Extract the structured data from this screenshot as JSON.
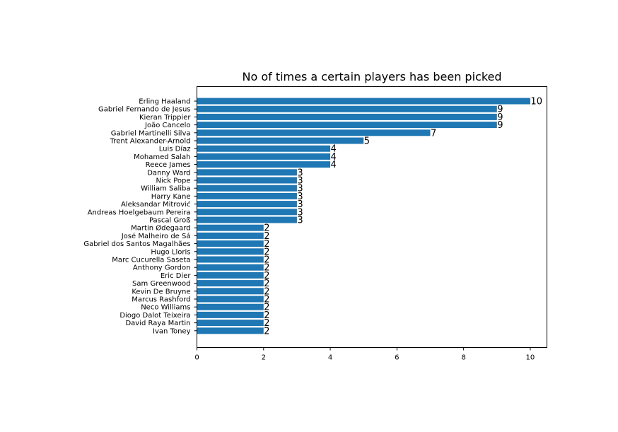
{
  "chart_data": {
    "type": "bar",
    "orientation": "horizontal",
    "title": "No of times a certain players has been picked",
    "xlabel": "",
    "ylabel": "",
    "xlim": [
      0,
      10.5
    ],
    "xticks": [
      0,
      2,
      4,
      6,
      8,
      10
    ],
    "grid": false,
    "bar_color": "#1f77b4",
    "categories": [
      "Erling Haaland",
      "Gabriel Fernando de Jesus",
      "Kieran Trippier",
      "João Cancelo",
      "Gabriel Martinelli Silva",
      "Trent Alexander-Arnold",
      "Luis Díaz",
      "Mohamed Salah",
      "Reece James",
      "Danny Ward",
      "Nick Pope",
      "William Saliba",
      "Harry Kane",
      "Aleksandar Mitrović",
      "Andreas Hoelgebaum Pereira",
      "Pascal Groß",
      "Martin Ødegaard",
      "José Malheiro de Sá",
      "Gabriel dos Santos Magalhães",
      "Hugo Lloris",
      "Marc Cucurella Saseta",
      "Anthony Gordon",
      "Eric Dier",
      "Sam Greenwood",
      "Kevin De Bruyne",
      "Marcus Rashford",
      "Neco Williams",
      "Diogo Dalot Teixeira",
      "David Raya Martin",
      "Ivan Toney"
    ],
    "values": [
      10,
      9,
      9,
      9,
      7,
      5,
      4,
      4,
      4,
      3,
      3,
      3,
      3,
      3,
      3,
      3,
      2,
      2,
      2,
      2,
      2,
      2,
      2,
      2,
      2,
      2,
      2,
      2,
      2,
      2
    ]
  }
}
